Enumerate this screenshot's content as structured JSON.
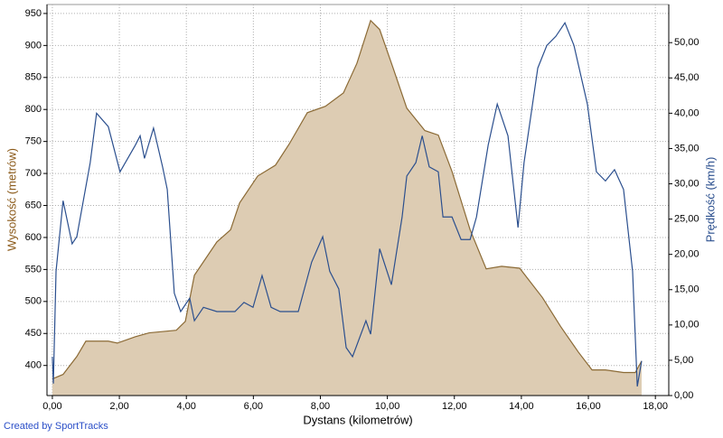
{
  "chart_data": {
    "type": "line",
    "x_label": "Dystans (kilometrów)",
    "y_label": "Wysokość (metrów)",
    "y2_label": "Prędkość (km/h)",
    "footer": "Created by SportTracks",
    "grid": true,
    "xlim": [
      -0.16,
      18.4
    ],
    "ylim": [
      353,
      964
    ],
    "y2lim": [
      0,
      55.4
    ],
    "xticks": [
      {
        "value": 0,
        "label": "0,00"
      },
      {
        "value": 2,
        "label": "2,00"
      },
      {
        "value": 4,
        "label": "4,00"
      },
      {
        "value": 6,
        "label": "6,00"
      },
      {
        "value": 8,
        "label": "8,00"
      },
      {
        "value": 10,
        "label": "10,00"
      },
      {
        "value": 12,
        "label": "12,00"
      },
      {
        "value": 14,
        "label": "14,00"
      },
      {
        "value": 16,
        "label": "16,00"
      },
      {
        "value": 18,
        "label": "18,00"
      }
    ],
    "yticks": [
      400,
      450,
      500,
      550,
      600,
      650,
      700,
      750,
      800,
      850,
      900,
      950
    ],
    "y2ticks": [
      {
        "value": 0,
        "label": "0,00"
      },
      {
        "value": 5,
        "label": "5,00"
      },
      {
        "value": 10,
        "label": "10,00"
      },
      {
        "value": 15,
        "label": "15,00"
      },
      {
        "value": 20,
        "label": "20,00"
      },
      {
        "value": 25,
        "label": "25,00"
      },
      {
        "value": 30,
        "label": "30,00"
      },
      {
        "value": 35,
        "label": "35,00"
      },
      {
        "value": 40,
        "label": "40,00"
      },
      {
        "value": 45,
        "label": "45,00"
      },
      {
        "value": 50,
        "label": "50,00"
      }
    ],
    "series": [
      {
        "axis": "y",
        "style": "area",
        "color": "#8b6a35",
        "fill": "#ddccb3",
        "x": [
          0,
          0.32,
          0.73,
          1.0,
          1.67,
          1.94,
          2.48,
          2.89,
          3.7,
          3.97,
          4.24,
          4.91,
          5.32,
          5.59,
          6.13,
          6.66,
          7.07,
          7.61,
          8.15,
          8.69,
          9.09,
          9.5,
          9.77,
          10.17,
          10.58,
          11.12,
          11.52,
          11.93,
          12.47,
          12.95,
          13.41,
          13.95,
          14.63,
          15.17,
          15.7,
          16.11,
          16.51,
          17.05,
          17.4,
          17.59
        ],
        "values": [
          379,
          386,
          414,
          438,
          438,
          435,
          445,
          451,
          455,
          469,
          541,
          593,
          612,
          654,
          696,
          713,
          746,
          795,
          805,
          826,
          872,
          939,
          925,
          865,
          802,
          767,
          760,
          703,
          612,
          551,
          555,
          552,
          506,
          461,
          421,
          393,
          393,
          389,
          389,
          407
        ]
      },
      {
        "axis": "y2",
        "style": "line",
        "color": "#2b4f8e",
        "x": [
          0,
          0.03,
          0.11,
          0.32,
          0.59,
          0.73,
          1.13,
          1.32,
          1.67,
          2.02,
          2.48,
          2.62,
          2.75,
          3.02,
          3.29,
          3.43,
          3.64,
          3.83,
          4.1,
          4.24,
          4.51,
          4.91,
          5.45,
          5.72,
          5.99,
          6.26,
          6.53,
          6.8,
          7.34,
          7.74,
          8.07,
          8.28,
          8.55,
          8.77,
          8.96,
          9.36,
          9.5,
          9.77,
          10.12,
          10.44,
          10.58,
          10.85,
          11.04,
          11.25,
          11.52,
          11.66,
          11.93,
          12.2,
          12.47,
          12.66,
          13.01,
          13.28,
          13.6,
          13.9,
          14.08,
          14.49,
          14.76,
          15.03,
          15.3,
          15.57,
          15.97,
          16.24,
          16.51,
          16.78,
          17.05,
          17.32,
          17.46,
          17.59
        ],
        "values": [
          5.5,
          1.7,
          17.6,
          27.6,
          21.5,
          22.5,
          33,
          40,
          38.1,
          31.7,
          35.5,
          36.8,
          33.6,
          37.9,
          32.4,
          29.2,
          14.5,
          11.9,
          13.8,
          10.6,
          12.5,
          11.9,
          11.9,
          13.2,
          12.5,
          17,
          12.5,
          11.9,
          11.9,
          18.9,
          22.5,
          17.6,
          15.1,
          6.8,
          5.5,
          10.6,
          8.7,
          20.8,
          15.7,
          25.3,
          31.1,
          33,
          36.8,
          32.4,
          31.7,
          25.3,
          25.3,
          22.1,
          22.1,
          25.3,
          35.5,
          41.3,
          36.8,
          23.8,
          33,
          46.4,
          49.6,
          50.9,
          52.8,
          49.6,
          41.3,
          31.7,
          30.4,
          32,
          29.2,
          17.6,
          1.3,
          4.9
        ]
      }
    ]
  }
}
